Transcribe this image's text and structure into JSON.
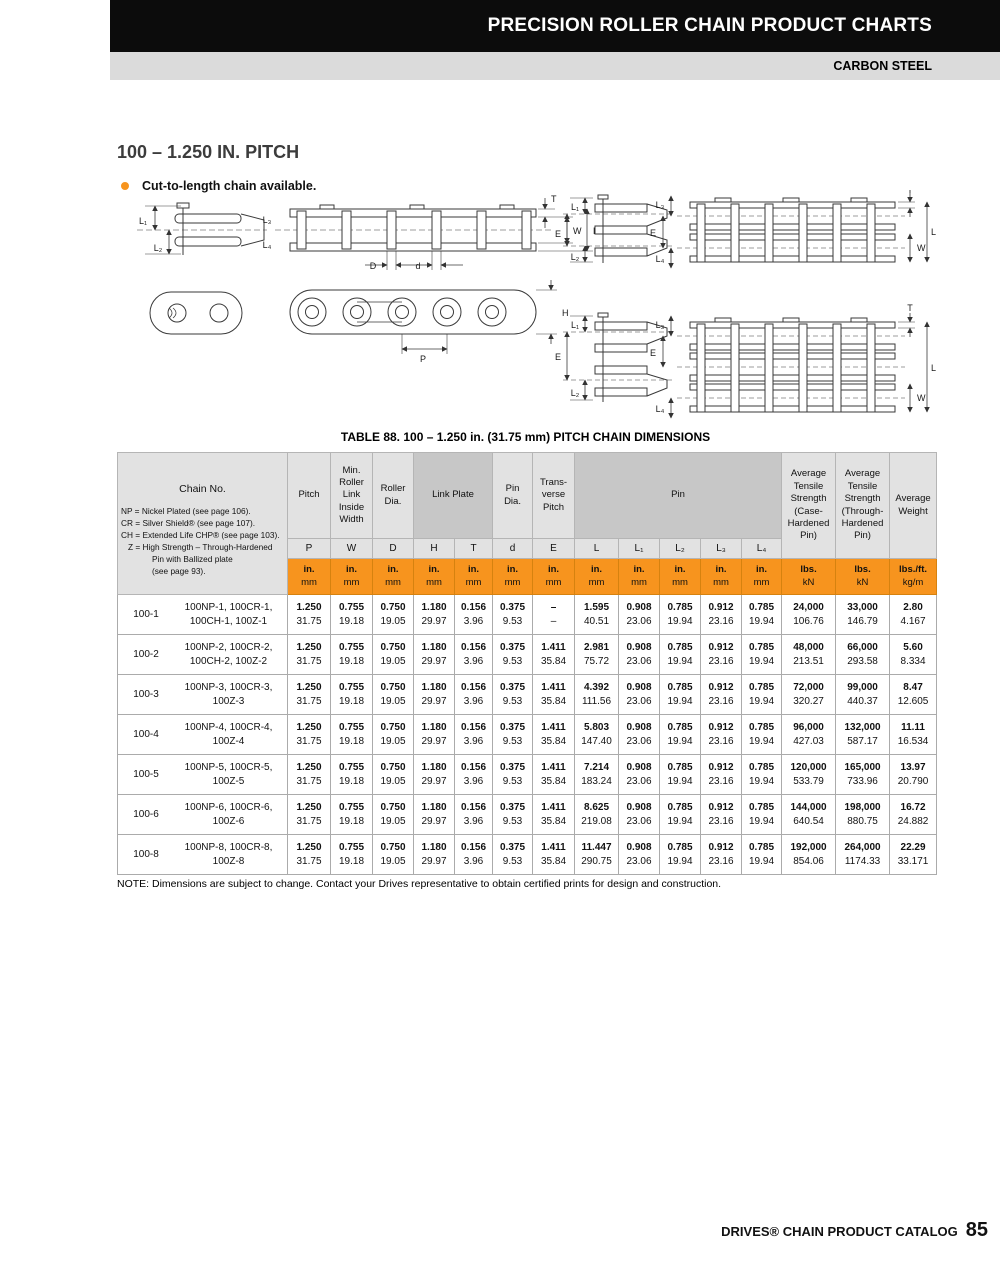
{
  "header": {
    "title": "PRECISION ROLLER CHAIN PRODUCT CHARTS",
    "subtitle": "CARBON STEEL"
  },
  "section": {
    "title": "100 – 1.250 IN. PITCH",
    "bullet": "Cut-to-length chain available."
  },
  "diagram": {
    "labels": {
      "L1": "L₁",
      "L2": "L₂",
      "L3": "L₃",
      "L4": "L₄",
      "T": "T",
      "W": "W",
      "L": "L",
      "E": "E",
      "D": "D",
      "d": "d",
      "H": "H",
      "P": "P"
    }
  },
  "table": {
    "title": "TABLE 88. 100 – 1.250 in. (31.75 mm) PITCH CHAIN DIMENSIONS",
    "col_chain": "Chain No.",
    "legend": [
      "NP = Nickel Plated (see page 106).",
      "CR = Silver Shield® (see page 107).",
      "CH = Extended Life CHP® (see page 103).",
      "Z = High Strength – Through-Hardened",
      "Pin with Ballized plate",
      "(see page 93)."
    ],
    "groups": {
      "pitch": "Pitch",
      "min_roller": "Min.\nRoller\nLink\nInside\nWidth",
      "roller_dia": "Roller\nDia.",
      "link_plate": "Link Plate",
      "pin_dia": "Pin\nDia.",
      "transverse": "Trans-\nverse\nPitch",
      "pin": "Pin",
      "tensile_case": "Average\nTensile\nStrength\n(Case-\nHardened\nPin)",
      "tensile_through": "Average\nTensile\nStrength\n(Through-\nHardened\nPin)",
      "weight": "Average\nWeight"
    },
    "letters": [
      "P",
      "W",
      "D",
      "H",
      "T",
      "d",
      "E",
      "L",
      "L₁",
      "L₂",
      "L₃",
      "L₄"
    ],
    "units": {
      "inch": "in.",
      "mm": "mm",
      "lbs": "lbs.",
      "kn": "kN",
      "lbsft": "lbs./ft.",
      "kgm": "kg/m"
    },
    "rows": [
      {
        "id": "100-1",
        "names": [
          "100NP-1, 100CR-1,",
          "100CH-1, 100Z-1"
        ],
        "values": [
          [
            "1.250",
            "31.75"
          ],
          [
            "0.755",
            "19.18"
          ],
          [
            "0.750",
            "19.05"
          ],
          [
            "1.180",
            "29.97"
          ],
          [
            "0.156",
            "3.96"
          ],
          [
            "0.375",
            "9.53"
          ],
          [
            "–",
            "–"
          ],
          [
            "1.595",
            "40.51"
          ],
          [
            "0.908",
            "23.06"
          ],
          [
            "0.785",
            "19.94"
          ],
          [
            "0.912",
            "23.16"
          ],
          [
            "0.785",
            "19.94"
          ],
          [
            "24,000",
            "106.76"
          ],
          [
            "33,000",
            "146.79"
          ],
          [
            "2.80",
            "4.167"
          ]
        ]
      },
      {
        "id": "100-2",
        "names": [
          "100NP-2, 100CR-2,",
          "100CH-2, 100Z-2"
        ],
        "values": [
          [
            "1.250",
            "31.75"
          ],
          [
            "0.755",
            "19.18"
          ],
          [
            "0.750",
            "19.05"
          ],
          [
            "1.180",
            "29.97"
          ],
          [
            "0.156",
            "3.96"
          ],
          [
            "0.375",
            "9.53"
          ],
          [
            "1.411",
            "35.84"
          ],
          [
            "2.981",
            "75.72"
          ],
          [
            "0.908",
            "23.06"
          ],
          [
            "0.785",
            "19.94"
          ],
          [
            "0.912",
            "23.16"
          ],
          [
            "0.785",
            "19.94"
          ],
          [
            "48,000",
            "213.51"
          ],
          [
            "66,000",
            "293.58"
          ],
          [
            "5.60",
            "8.334"
          ]
        ]
      },
      {
        "id": "100-3",
        "names": [
          "100NP-3, 100CR-3,",
          "100Z-3"
        ],
        "values": [
          [
            "1.250",
            "31.75"
          ],
          [
            "0.755",
            "19.18"
          ],
          [
            "0.750",
            "19.05"
          ],
          [
            "1.180",
            "29.97"
          ],
          [
            "0.156",
            "3.96"
          ],
          [
            "0.375",
            "9.53"
          ],
          [
            "1.411",
            "35.84"
          ],
          [
            "4.392",
            "111.56"
          ],
          [
            "0.908",
            "23.06"
          ],
          [
            "0.785",
            "19.94"
          ],
          [
            "0.912",
            "23.16"
          ],
          [
            "0.785",
            "19.94"
          ],
          [
            "72,000",
            "320.27"
          ],
          [
            "99,000",
            "440.37"
          ],
          [
            "8.47",
            "12.605"
          ]
        ]
      },
      {
        "id": "100-4",
        "names": [
          "100NP-4, 100CR-4,",
          "100Z-4"
        ],
        "values": [
          [
            "1.250",
            "31.75"
          ],
          [
            "0.755",
            "19.18"
          ],
          [
            "0.750",
            "19.05"
          ],
          [
            "1.180",
            "29.97"
          ],
          [
            "0.156",
            "3.96"
          ],
          [
            "0.375",
            "9.53"
          ],
          [
            "1.411",
            "35.84"
          ],
          [
            "5.803",
            "147.40"
          ],
          [
            "0.908",
            "23.06"
          ],
          [
            "0.785",
            "19.94"
          ],
          [
            "0.912",
            "23.16"
          ],
          [
            "0.785",
            "19.94"
          ],
          [
            "96,000",
            "427.03"
          ],
          [
            "132,000",
            "587.17"
          ],
          [
            "11.11",
            "16.534"
          ]
        ]
      },
      {
        "id": "100-5",
        "names": [
          "100NP-5, 100CR-5,",
          "100Z-5"
        ],
        "values": [
          [
            "1.250",
            "31.75"
          ],
          [
            "0.755",
            "19.18"
          ],
          [
            "0.750",
            "19.05"
          ],
          [
            "1.180",
            "29.97"
          ],
          [
            "0.156",
            "3.96"
          ],
          [
            "0.375",
            "9.53"
          ],
          [
            "1.411",
            "35.84"
          ],
          [
            "7.214",
            "183.24"
          ],
          [
            "0.908",
            "23.06"
          ],
          [
            "0.785",
            "19.94"
          ],
          [
            "0.912",
            "23.16"
          ],
          [
            "0.785",
            "19.94"
          ],
          [
            "120,000",
            "533.79"
          ],
          [
            "165,000",
            "733.96"
          ],
          [
            "13.97",
            "20.790"
          ]
        ]
      },
      {
        "id": "100-6",
        "names": [
          "100NP-6, 100CR-6,",
          "100Z-6"
        ],
        "values": [
          [
            "1.250",
            "31.75"
          ],
          [
            "0.755",
            "19.18"
          ],
          [
            "0.750",
            "19.05"
          ],
          [
            "1.180",
            "29.97"
          ],
          [
            "0.156",
            "3.96"
          ],
          [
            "0.375",
            "9.53"
          ],
          [
            "1.411",
            "35.84"
          ],
          [
            "8.625",
            "219.08"
          ],
          [
            "0.908",
            "23.06"
          ],
          [
            "0.785",
            "19.94"
          ],
          [
            "0.912",
            "23.16"
          ],
          [
            "0.785",
            "19.94"
          ],
          [
            "144,000",
            "640.54"
          ],
          [
            "198,000",
            "880.75"
          ],
          [
            "16.72",
            "24.882"
          ]
        ]
      },
      {
        "id": "100-8",
        "names": [
          "100NP-8, 100CR-8,",
          "100Z-8"
        ],
        "values": [
          [
            "1.250",
            "31.75"
          ],
          [
            "0.755",
            "19.18"
          ],
          [
            "0.750",
            "19.05"
          ],
          [
            "1.180",
            "29.97"
          ],
          [
            "0.156",
            "3.96"
          ],
          [
            "0.375",
            "9.53"
          ],
          [
            "1.411",
            "35.84"
          ],
          [
            "11.447",
            "290.75"
          ],
          [
            "0.908",
            "23.06"
          ],
          [
            "0.785",
            "19.94"
          ],
          [
            "0.912",
            "23.16"
          ],
          [
            "0.785",
            "19.94"
          ],
          [
            "192,000",
            "854.06"
          ],
          [
            "264,000",
            "1174.33"
          ],
          [
            "22.29",
            "33.171"
          ]
        ]
      }
    ]
  },
  "note": "NOTE: Dimensions are subject to change. Contact your Drives representative to obtain certified prints for design and construction.",
  "footer": {
    "label": "DRIVES® CHAIN PRODUCT CATALOG",
    "page": "85"
  }
}
